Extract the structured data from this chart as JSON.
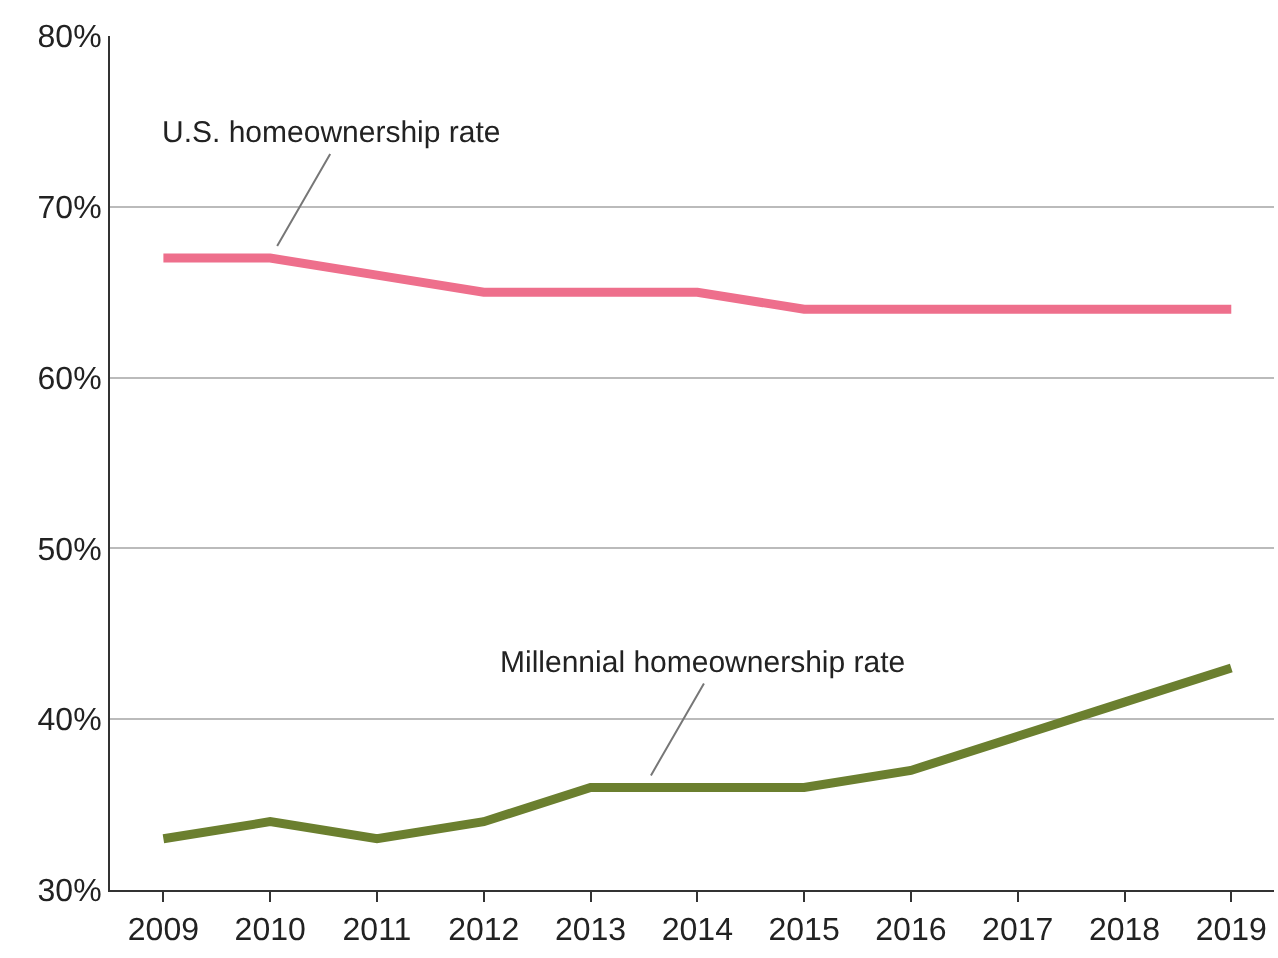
{
  "chart_data": {
    "type": "line",
    "x": [
      2009,
      2010,
      2011,
      2012,
      2013,
      2014,
      2015,
      2016,
      2017,
      2018,
      2019
    ],
    "series": [
      {
        "color": "#ee6f8c",
        "values": [
          67,
          67,
          66,
          65,
          65,
          65,
          64,
          64,
          64,
          64,
          64
        ]
      },
      {
        "color": "#6b7f2f",
        "values": [
          33,
          34,
          33,
          34,
          36,
          36,
          36,
          37,
          39,
          41,
          43
        ]
      }
    ],
    "annotations": [
      {
        "text": "U.S. homeownership rate",
        "x": 2010,
        "y": 67
      },
      {
        "text": "Millennial homeownership rate",
        "x": 2013.5,
        "y": 36
      }
    ],
    "xlim": [
      2008.5,
      2019.4
    ],
    "xticks": [
      2009,
      2010,
      2011,
      2012,
      2013,
      2014,
      2015,
      2016,
      2017,
      2018,
      2019
    ],
    "ylim": [
      30,
      80
    ],
    "yticks": [
      {
        "value": 30,
        "label": "30%"
      },
      {
        "value": 40,
        "label": "40%"
      },
      {
        "value": 50,
        "label": "50%"
      },
      {
        "value": 60,
        "label": "60%"
      },
      {
        "value": 70,
        "label": "70%"
      },
      {
        "value": 80,
        "label": "80%"
      }
    ],
    "grid": "y",
    "legend": false,
    "marker": "none",
    "line_style": "solid"
  }
}
